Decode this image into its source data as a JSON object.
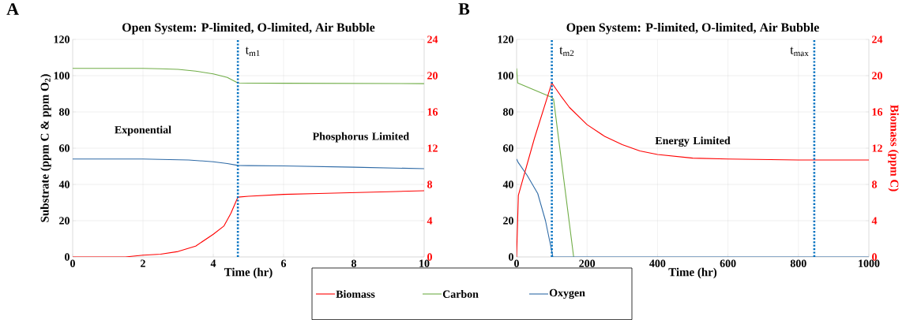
{
  "chart_data": [
    {
      "type": "line",
      "title": "Open System: P-limited, O-limited, Air Bubble",
      "xlabel": "Time (hr)",
      "ylabel": "Substrate (ppm C & ppm O$_{2}$)",
      "xlim": [
        0,
        10
      ],
      "xticks": [
        0,
        2,
        4,
        6,
        8,
        10
      ],
      "ylim": [
        0,
        120
      ],
      "yticks": [
        0,
        20,
        40,
        60,
        80,
        100,
        120
      ],
      "y2lim": [
        0,
        24
      ],
      "y2ticks": [
        0,
        4,
        8,
        12,
        16,
        20,
        24
      ],
      "grid": true,
      "legend": "bottom",
      "marker": "none",
      "line_style": "solid",
      "series": [
        {
          "name": "Biomass",
          "color": "#ff0000",
          "axis": "y2",
          "x": [
            0,
            1,
            1.5,
            2,
            2.5,
            3,
            3.5,
            4,
            4.3,
            4.5,
            4.7,
            5,
            6,
            7,
            8,
            9,
            10
          ],
          "values": [
            0,
            0,
            0,
            0.2,
            0.3,
            0.6,
            1.2,
            2.5,
            3.4,
            4.8,
            6.6,
            6.7,
            6.9,
            7,
            7.1,
            7.2,
            7.3
          ]
        },
        {
          "name": "Carbon",
          "color": "#70ad47",
          "x": [
            0,
            1,
            2,
            2.5,
            3,
            3.5,
            4,
            4.4,
            4.7,
            5,
            6,
            8,
            10
          ],
          "values": [
            104,
            104,
            104,
            103.8,
            103.5,
            102.5,
            101,
            99,
            96,
            95.9,
            95.8,
            95.7,
            95.6
          ]
        },
        {
          "name": "Oxygen",
          "color": "#2e6aa6",
          "x": [
            0,
            1,
            2,
            2.5,
            3.3,
            4,
            4.4,
            4.7,
            5,
            6,
            8,
            10
          ],
          "values": [
            54,
            54,
            54,
            53.8,
            53.5,
            52.5,
            51.5,
            50.5,
            50.4,
            50.2,
            49.5,
            48.7
          ]
        }
      ],
      "ref_lines": [
        {
          "axis": "x",
          "value": 4.7,
          "label": "t$_{m1}$",
          "color": "#0070c0",
          "line_style": "dotted"
        }
      ],
      "annotations": [
        "A",
        "Exponential",
        "Phosphorus Limited"
      ]
    },
    {
      "type": "line",
      "title": "Open System: P-limited, O-limited, Air Bubble",
      "xlabel": "Time (hr)",
      "y2label": "Biomass (ppm C)",
      "xlim": [
        0,
        1000
      ],
      "xticks": [
        0,
        200,
        400,
        600,
        800,
        1000
      ],
      "ylim": [
        0,
        120
      ],
      "yticks": [
        0,
        20,
        40,
        60,
        80,
        100,
        120
      ],
      "y2lim": [
        0,
        24
      ],
      "y2ticks": [
        0,
        4,
        8,
        12,
        16,
        20,
        24
      ],
      "grid": true,
      "marker": "none",
      "line_style": "solid",
      "series": [
        {
          "color": "#ff0000",
          "axis": "y2",
          "x": [
            0,
            5,
            50,
            100,
            125,
            150,
            200,
            250,
            300,
            350,
            400,
            500,
            600,
            800,
            1000
          ],
          "values": [
            0,
            6.8,
            13,
            19.2,
            17.8,
            16.5,
            14.6,
            13.3,
            12.4,
            11.7,
            11.3,
            10.9,
            10.8,
            10.7,
            10.7
          ]
        },
        {
          "color": "#70ad47",
          "x": [
            0,
            3,
            100,
            105,
            162
          ],
          "values": [
            104,
            96,
            88,
            87,
            0
          ]
        },
        {
          "color": "#2e6aa6",
          "x": [
            0,
            5,
            30,
            60,
            82,
            98,
            103,
            1000
          ],
          "values": [
            54,
            52,
            45,
            35,
            20,
            5,
            0,
            0
          ]
        }
      ],
      "ref_lines": [
        {
          "axis": "x",
          "value": 100,
          "label": "t$_{m2}$",
          "color": "#0070c0",
          "line_style": "dotted"
        },
        {
          "axis": "x",
          "value": 845,
          "label": "t$_{max}$",
          "color": "#0070c0",
          "line_style": "dotted"
        }
      ],
      "annotations": [
        "B",
        "Energy Limited"
      ]
    }
  ]
}
